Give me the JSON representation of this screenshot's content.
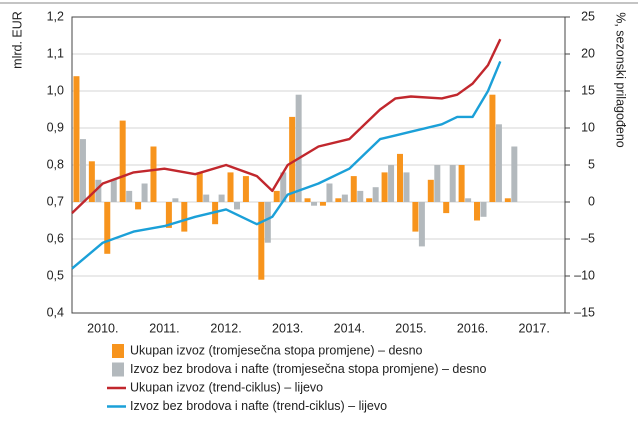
{
  "chart_data": {
    "type": "combo",
    "ylabel": "mlrd. EUR",
    "y2label": "%, sezonski prilagođeno",
    "xlim": [
      2010,
      2018
    ],
    "xticks": [
      {
        "value": 2010.5,
        "label": "2010."
      },
      {
        "value": 2011.5,
        "label": "2011."
      },
      {
        "value": 2012.5,
        "label": "2012."
      },
      {
        "value": 2013.5,
        "label": "2013."
      },
      {
        "value": 2014.5,
        "label": "2014."
      },
      {
        "value": 2015.5,
        "label": "2015."
      },
      {
        "value": 2016.5,
        "label": "2016."
      },
      {
        "value": 2017.5,
        "label": "2017."
      }
    ],
    "ylim": [
      0.4,
      1.2
    ],
    "yticks": [
      {
        "value": 0.4,
        "label": "0,4"
      },
      {
        "value": 0.5,
        "label": "0,5"
      },
      {
        "value": 0.6,
        "label": "0,6"
      },
      {
        "value": 0.7,
        "label": "0,7"
      },
      {
        "value": 0.8,
        "label": "0,8"
      },
      {
        "value": 0.9,
        "label": "0,9"
      },
      {
        "value": 1.0,
        "label": "1,0"
      },
      {
        "value": 1.1,
        "label": "1,1"
      },
      {
        "value": 1.2,
        "label": "1,2"
      }
    ],
    "y2lim": [
      -15,
      25
    ],
    "y2ticks": [
      {
        "value": -15,
        "label": "–15"
      },
      {
        "value": -10,
        "label": "–10"
      },
      {
        "value": -5,
        "label": "–5"
      },
      0,
      5,
      10,
      15,
      20,
      25
    ],
    "grid": true,
    "categories": [
      null,
      null,
      null,
      null,
      null,
      null,
      null,
      null,
      null,
      null,
      null,
      null,
      null,
      null,
      null,
      null,
      null,
      null,
      null,
      null,
      null,
      null,
      null,
      null,
      null,
      null,
      null,
      null,
      null
    ],
    "series": [
      {
        "name": "Ukupan izvoz (tromjesečna stopa promjene) – desno",
        "type": "bar",
        "axis": "y2",
        "color": "#f7941d",
        "values": [
          17,
          5.5,
          -7,
          11,
          -1,
          7.5,
          -3.5,
          -4,
          4,
          -3,
          4,
          3.5,
          -10.5,
          1.5,
          11.5,
          0.5,
          -0.5,
          0.5,
          3.5,
          0.5,
          4,
          6.5,
          -4,
          3,
          -1.5,
          5,
          -2.5,
          14.5,
          0.5
        ]
      },
      {
        "name": "Izvoz bez brodova i nafte (tromjesečna stopa promjene) – desno",
        "type": "bar",
        "axis": "y2",
        "color": "#b3b9bd",
        "values": [
          8.5,
          3,
          3,
          1.5,
          2.5,
          0,
          0.5,
          0,
          1,
          1,
          -1,
          0,
          -5.5,
          4,
          14.5,
          -0.5,
          2.5,
          1,
          1.5,
          2,
          5,
          4,
          -6,
          5,
          5,
          0.5,
          -2,
          10.5,
          7.5
        ]
      },
      {
        "name": "Ukupan izvoz (trend-ciklus) – lijevo",
        "type": "line",
        "color": "#c1272d",
        "x": [
          2010,
          2010.5,
          2011,
          2011.5,
          2012,
          2012.5,
          2013,
          2013.25,
          2013.5,
          2014,
          2014.5,
          2015,
          2015.25,
          2015.5,
          2016,
          2016.25,
          2016.5,
          2016.75,
          2016.95
        ],
        "values": [
          0.67,
          0.75,
          0.78,
          0.79,
          0.775,
          0.8,
          0.77,
          0.73,
          0.8,
          0.85,
          0.87,
          0.95,
          0.98,
          0.985,
          0.98,
          0.99,
          1.02,
          1.07,
          1.14
        ]
      },
      {
        "name": "Izvoz bez brodova i nafte (trend-ciklus) – lijevo",
        "type": "line",
        "color": "#1ba0d8",
        "x": [
          2010,
          2010.5,
          2011,
          2011.5,
          2012,
          2012.5,
          2013,
          2013.25,
          2013.5,
          2014,
          2014.5,
          2015,
          2015.25,
          2015.5,
          2016,
          2016.25,
          2016.5,
          2016.75,
          2016.95
        ],
        "values": [
          0.52,
          0.59,
          0.62,
          0.635,
          0.66,
          0.68,
          0.64,
          0.66,
          0.72,
          0.75,
          0.79,
          0.87,
          0.88,
          0.89,
          0.91,
          0.93,
          0.93,
          1.0,
          1.08
        ]
      }
    ]
  }
}
